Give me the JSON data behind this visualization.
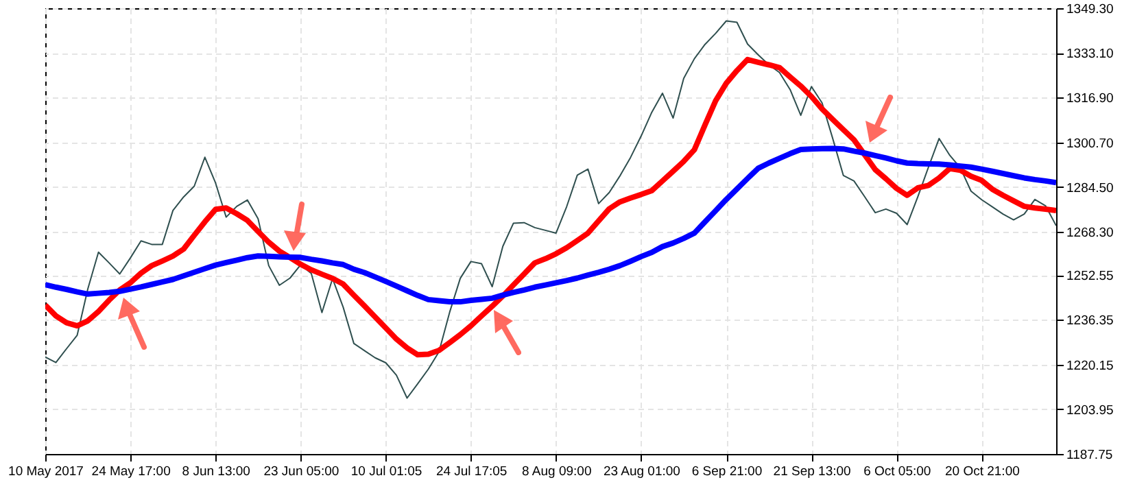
{
  "chart_data": {
    "type": "line",
    "grid": true,
    "marker": "none",
    "line_style": "solid",
    "categories": [
      "10 May 2017",
      null,
      null,
      null,
      null,
      null,
      null,
      null,
      "24 May 17:00",
      null,
      null,
      null,
      null,
      null,
      null,
      null,
      "8 Jun 13:00",
      null,
      null,
      null,
      null,
      null,
      null,
      null,
      "23 Jun 05:00",
      null,
      null,
      null,
      null,
      null,
      null,
      null,
      "10 Jul 01:05",
      null,
      null,
      null,
      null,
      null,
      null,
      null,
      "24 Jul 17:05",
      null,
      null,
      null,
      null,
      null,
      null,
      null,
      "8 Aug 09:00",
      null,
      null,
      null,
      null,
      null,
      null,
      null,
      "23 Aug 01:00",
      null,
      null,
      null,
      null,
      null,
      null,
      null,
      "6 Sep 21:00",
      null,
      null,
      null,
      null,
      null,
      null,
      null,
      "21 Sep 13:00",
      null,
      null,
      null,
      null,
      null,
      null,
      null,
      "6 Oct 05:00",
      null,
      null,
      null,
      null,
      null,
      null,
      null,
      "20 Oct 21:00",
      null,
      null,
      null,
      null,
      null,
      null,
      null
    ],
    "ylim": [
      1187.75,
      1349.3
    ],
    "yticks": [
      {
        "value": 1187.75,
        "label": "1187.75"
      },
      {
        "value": 1203.95,
        "label": "1203.95"
      },
      {
        "value": 1220.15,
        "label": "1220.15"
      },
      {
        "value": 1236.35,
        "label": "1236.35"
      },
      {
        "value": 1252.55,
        "label": "1252.55"
      },
      {
        "value": 1268.3,
        "label": "1268.30"
      },
      {
        "value": 1284.5,
        "label": "1284.50"
      },
      {
        "value": 1300.7,
        "label": "1300.70"
      },
      {
        "value": 1316.9,
        "label": "1316.90"
      },
      {
        "value": 1333.1,
        "label": "1333.10"
      },
      {
        "value": 1349.3,
        "label": "1349.30"
      }
    ],
    "series": [
      {
        "color": "#2f4f4f",
        "values": [
          1222.9,
          1220.9,
          1225.9,
          1230.8,
          1247.6,
          1260.9,
          1257,
          1253,
          1258.8,
          1265,
          1263.7,
          1263.7,
          1276,
          1280.9,
          1284.8,
          1295.3,
          1286,
          1273.6,
          1277.5,
          1279.8,
          1273,
          1256,
          1248.9,
          1251.5,
          1256.3,
          1253.2,
          1239,
          1251.3,
          1240.9,
          1227.8,
          1225.2,
          1222.6,
          1220.8,
          1216.3,
          1208,
          1213.2,
          1218.5,
          1224.8,
          1239.1,
          1251.4,
          1257.5,
          1256.7,
          1248.4,
          1263,
          1271.4,
          1271.6,
          1269.8,
          1268.8,
          1267.8,
          1277.4,
          1288.8,
          1291,
          1278.5,
          1282.5,
          1288.5,
          1295.2,
          1303,
          1311.6,
          1318.5,
          1309.5,
          1323.9,
          1331,
          1336.2,
          1340.2,
          1344.7,
          1344.2,
          1336.3,
          1332.4,
          1328.8,
          1326,
          1319.8,
          1310.5,
          1320.9,
          1315,
          1302.1,
          1288.7,
          1286.7,
          1281,
          1275.2,
          1276.5,
          1275,
          1270.9,
          1281,
          1291.7,
          1302.1,
          1296,
          1291.4,
          1283,
          1279.9,
          1277.3,
          1274.7,
          1272.6,
          1274.7,
          1280,
          1277.7,
          1270.5
        ]
      },
      {
        "color": "#ff0000",
        "values": [
          1241.7,
          1237.8,
          1235.3,
          1234.2,
          1236,
          1239.4,
          1243.5,
          1247.2,
          1249.8,
          1253.3,
          1256,
          1257.7,
          1259.5,
          1262,
          1267,
          1271.9,
          1276.4,
          1276.9,
          1274.8,
          1272.4,
          1268.4,
          1264.5,
          1261.3,
          1258.9,
          1256.5,
          1254.5,
          1252.9,
          1251.4,
          1249.3,
          1245.3,
          1241.4,
          1237.4,
          1233.4,
          1229.4,
          1226.2,
          1223.7,
          1223.9,
          1225.3,
          1228.1,
          1231,
          1234.2,
          1237.8,
          1241.3,
          1245,
          1249,
          1253,
          1257,
          1258.5,
          1260.3,
          1262.5,
          1265.1,
          1267.8,
          1272.2,
          1276.6,
          1279.1,
          1280.5,
          1281.8,
          1283.2,
          1286.7,
          1290.2,
          1293.8,
          1298,
          1307,
          1315.8,
          1322.1,
          1326.7,
          1330.7,
          1329.7,
          1328.8,
          1327.8,
          1324.4,
          1321.1,
          1317.3,
          1312.8,
          1309,
          1305.3,
          1301.6,
          1296.2,
          1290.8,
          1287.5,
          1284,
          1281.5,
          1284.2,
          1285.1,
          1287.8,
          1291.2,
          1290.6,
          1288.4,
          1286.9,
          1283.7,
          1281.5,
          1279.5,
          1277.5,
          1276.9,
          1276.5,
          1276
        ]
      },
      {
        "color": "#0000ff",
        "values": [
          1249.1,
          1248.2,
          1247.4,
          1246.5,
          1245.7,
          1246,
          1246.3,
          1246.7,
          1247.5,
          1248.3,
          1249.2,
          1250.1,
          1251,
          1252.3,
          1253.6,
          1254.9,
          1256.2,
          1257.1,
          1258,
          1258.9,
          1259.5,
          1259.4,
          1259.2,
          1259.1,
          1259,
          1258.3,
          1257.7,
          1257,
          1256.4,
          1254.7,
          1253.5,
          1251.9,
          1250.3,
          1248.6,
          1246.9,
          1245.2,
          1243.7,
          1243.3,
          1242.9,
          1242.9,
          1243.4,
          1243.8,
          1244.2,
          1245.3,
          1246.3,
          1247.2,
          1248.2,
          1249,
          1249.8,
          1250.6,
          1251.5,
          1252.6,
          1253.6,
          1254.7,
          1256,
          1257.6,
          1259.3,
          1260.8,
          1262.9,
          1264.2,
          1265.9,
          1267.8,
          1271.9,
          1275.9,
          1280,
          1283.8,
          1287.6,
          1291.3,
          1293.2,
          1294.9,
          1296.6,
          1298.1,
          1298.3,
          1298.4,
          1298.5,
          1298.3,
          1297.5,
          1296.8,
          1295.9,
          1295,
          1294,
          1293.2,
          1293,
          1292.9,
          1292.8,
          1292.5,
          1292.1,
          1291.7,
          1291,
          1290.2,
          1289.4,
          1288.6,
          1287.8,
          1287.2,
          1286.7,
          1286.1
        ]
      }
    ]
  }
}
